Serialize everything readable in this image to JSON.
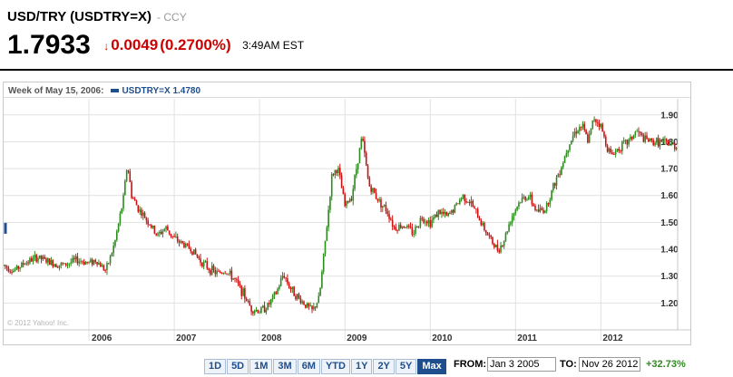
{
  "header": {
    "title": "USD/TRY (USDTRY=X)",
    "exchange": "- CCY",
    "price": "1.7933",
    "change_arrow": "↓",
    "change": "0.0049",
    "change_percent": "(0.2700%)",
    "time": "3:49AM EST"
  },
  "legend": {
    "week_label": "Week of May 15, 2006:",
    "series_label": "USDTRY=X 1.4780"
  },
  "watermark": "© 2012 Yahoo! Inc.",
  "controls": {
    "range_buttons": [
      "1D",
      "5D",
      "1M",
      "3M",
      "6M",
      "YTD",
      "1Y",
      "2Y",
      "5Y",
      "Max"
    ],
    "active_range": "Max",
    "from_label": "FROM:",
    "from_value": "Jan 3 2005",
    "to_label": "TO:",
    "to_value": "Nov 26 2012",
    "change_summary": "+32.73%"
  },
  "colors": {
    "up": "#2e8b1f",
    "down": "#cc1111",
    "accent": "#1f4e8c",
    "negative_text": "#cc0000",
    "positive_text": "#2e8b1f"
  },
  "chart_data": {
    "type": "candlestick",
    "x_ticks": [
      "2006",
      "2007",
      "2008",
      "2009",
      "2010",
      "2011",
      "2012"
    ],
    "y_ticks": [
      1.2,
      1.3,
      1.4,
      1.5,
      1.6,
      1.7,
      1.8,
      1.9
    ],
    "ylim": [
      1.1,
      1.96
    ],
    "xlim": [
      2005.0,
      2012.9
    ],
    "grid": true,
    "series": [
      {
        "name": "USDTRY=X",
        "points": [
          [
            2005.0,
            1.34
          ],
          [
            2005.12,
            1.32
          ],
          [
            2005.25,
            1.35
          ],
          [
            2005.4,
            1.37
          ],
          [
            2005.55,
            1.35
          ],
          [
            2005.7,
            1.34
          ],
          [
            2005.85,
            1.36
          ],
          [
            2006.0,
            1.35
          ],
          [
            2006.08,
            1.36
          ],
          [
            2006.2,
            1.32
          ],
          [
            2006.3,
            1.42
          ],
          [
            2006.4,
            1.58
          ],
          [
            2006.45,
            1.72
          ],
          [
            2006.5,
            1.6
          ],
          [
            2006.58,
            1.55
          ],
          [
            2006.7,
            1.5
          ],
          [
            2006.8,
            1.45
          ],
          [
            2006.9,
            1.48
          ],
          [
            2007.0,
            1.44
          ],
          [
            2007.1,
            1.42
          ],
          [
            2007.2,
            1.4
          ],
          [
            2007.3,
            1.36
          ],
          [
            2007.4,
            1.33
          ],
          [
            2007.5,
            1.31
          ],
          [
            2007.6,
            1.32
          ],
          [
            2007.7,
            1.29
          ],
          [
            2007.8,
            1.24
          ],
          [
            2007.9,
            1.18
          ],
          [
            2008.0,
            1.17
          ],
          [
            2008.1,
            1.19
          ],
          [
            2008.2,
            1.24
          ],
          [
            2008.28,
            1.31
          ],
          [
            2008.35,
            1.26
          ],
          [
            2008.45,
            1.22
          ],
          [
            2008.55,
            1.19
          ],
          [
            2008.62,
            1.17
          ],
          [
            2008.7,
            1.22
          ],
          [
            2008.78,
            1.46
          ],
          [
            2008.85,
            1.68
          ],
          [
            2008.92,
            1.7
          ],
          [
            2009.0,
            1.56
          ],
          [
            2009.08,
            1.6
          ],
          [
            2009.15,
            1.73
          ],
          [
            2009.2,
            1.82
          ],
          [
            2009.28,
            1.64
          ],
          [
            2009.4,
            1.58
          ],
          [
            2009.5,
            1.54
          ],
          [
            2009.58,
            1.48
          ],
          [
            2009.7,
            1.49
          ],
          [
            2009.8,
            1.46
          ],
          [
            2009.9,
            1.52
          ],
          [
            2010.0,
            1.5
          ],
          [
            2010.1,
            1.54
          ],
          [
            2010.2,
            1.52
          ],
          [
            2010.3,
            1.56
          ],
          [
            2010.38,
            1.6
          ],
          [
            2010.48,
            1.57
          ],
          [
            2010.58,
            1.51
          ],
          [
            2010.68,
            1.45
          ],
          [
            2010.78,
            1.4
          ],
          [
            2010.85,
            1.42
          ],
          [
            2010.95,
            1.52
          ],
          [
            2011.05,
            1.58
          ],
          [
            2011.15,
            1.6
          ],
          [
            2011.25,
            1.54
          ],
          [
            2011.35,
            1.55
          ],
          [
            2011.45,
            1.64
          ],
          [
            2011.55,
            1.72
          ],
          [
            2011.62,
            1.79
          ],
          [
            2011.7,
            1.84
          ],
          [
            2011.78,
            1.86
          ],
          [
            2011.85,
            1.8
          ],
          [
            2011.92,
            1.89
          ],
          [
            2012.0,
            1.86
          ],
          [
            2012.05,
            1.8
          ],
          [
            2012.12,
            1.75
          ],
          [
            2012.22,
            1.78
          ],
          [
            2012.32,
            1.8
          ],
          [
            2012.42,
            1.84
          ],
          [
            2012.5,
            1.81
          ],
          [
            2012.6,
            1.8
          ],
          [
            2012.7,
            1.8
          ],
          [
            2012.8,
            1.79
          ],
          [
            2012.9,
            1.78
          ]
        ]
      }
    ]
  }
}
